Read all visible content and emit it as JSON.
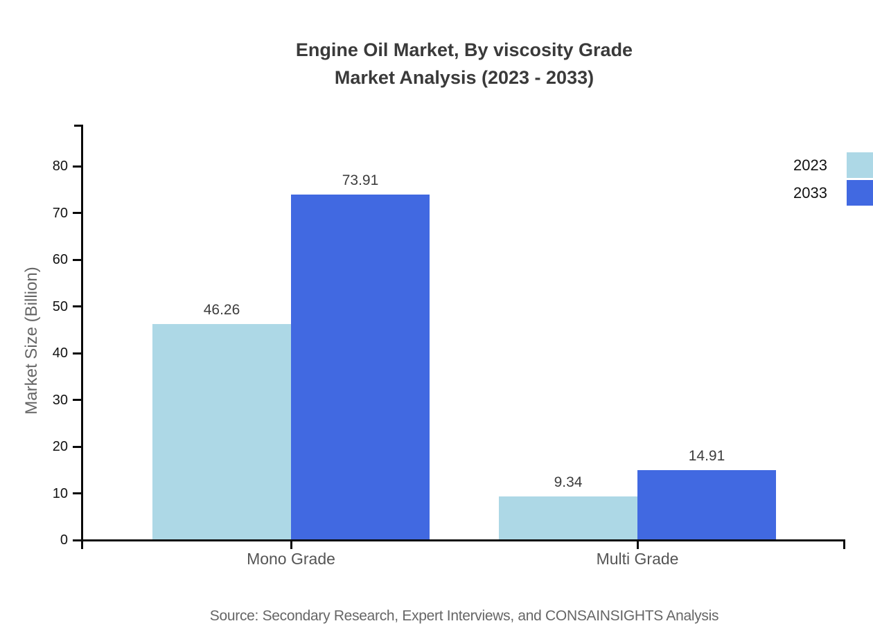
{
  "header": {
    "title_line1": "Engine Oil Market, By viscosity Grade",
    "title_line2": "Market Analysis (2023 - 2033)"
  },
  "footer": {
    "source": "Source: Secondary Research, Expert Interviews, and CONSAINSIGHTS Analysis"
  },
  "chart_data": {
    "type": "bar",
    "title": "Engine Oil Market, By viscosity Grade Market Analysis (2023 - 2033)",
    "categories": [
      "Mono Grade",
      "Multi Grade"
    ],
    "series": [
      {
        "name": "2023",
        "color": "#ADD8E6",
        "values": [
          46.26,
          9.34
        ]
      },
      {
        "name": "2033",
        "color": "#4169E1",
        "values": [
          73.91,
          14.91
        ]
      }
    ],
    "xlabel": "",
    "ylabel": "Market Size (Billion)",
    "ylim": [
      0,
      89
    ],
    "yticks": [
      0,
      10,
      20,
      30,
      40,
      50,
      60,
      70,
      80
    ],
    "grid": false,
    "legend_position": "top-right",
    "value_labels": true,
    "axis_color": "#0a0a0a",
    "tick_label_color": "#111111",
    "category_label_color": "#555555",
    "value_label_color": "#3d3d3d"
  }
}
